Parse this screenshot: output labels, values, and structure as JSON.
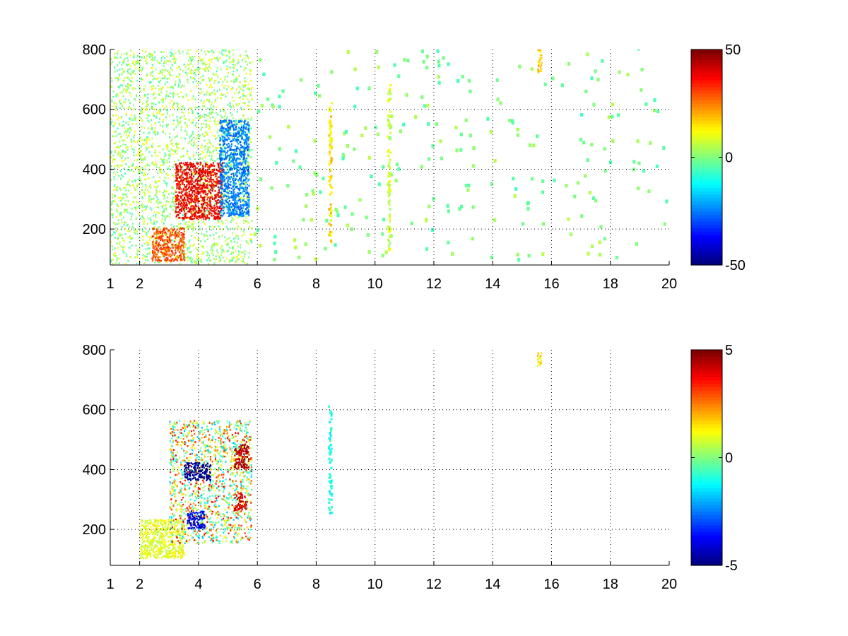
{
  "chart_data": [
    {
      "type": "heatmap",
      "title": "",
      "xlabel": "",
      "ylabel": "",
      "xlim": [
        1,
        20
      ],
      "ylim": [
        80,
        800
      ],
      "xticks": [
        1,
        2,
        4,
        6,
        8,
        10,
        12,
        14,
        16,
        18,
        20
      ],
      "yticks": [
        200,
        400,
        600,
        800
      ],
      "grid": true,
      "colormap": "jet",
      "colorbar": {
        "clim": [
          -50,
          50
        ],
        "ticks": [
          -50,
          0,
          50
        ]
      },
      "features": [
        {
          "desc": "dense low-frequency band",
          "x": [
            1,
            5.8
          ],
          "y": [
            80,
            800
          ],
          "value": 3,
          "noise": 10
        },
        {
          "desc": "positive ridge",
          "x": [
            2.4,
            3.5
          ],
          "y": [
            90,
            200
          ],
          "value": 30
        },
        {
          "desc": "positive core",
          "x": [
            3.2,
            4.8
          ],
          "y": [
            230,
            420
          ],
          "value": 38
        },
        {
          "desc": "negative core",
          "x": [
            4.7,
            5.7
          ],
          "y": [
            240,
            560
          ],
          "value": -25
        },
        {
          "desc": "sparse scattered cells",
          "x": [
            5.8,
            20
          ],
          "y": [
            80,
            800
          ],
          "value": 0,
          "noise": 6
        },
        {
          "desc": "vertical stripe",
          "x": [
            8.4,
            8.5
          ],
          "y": [
            150,
            650
          ],
          "value": 15
        },
        {
          "desc": "vertical stripe",
          "x": [
            10.4,
            10.5
          ],
          "y": [
            120,
            680
          ],
          "value": 8
        },
        {
          "desc": "cell",
          "x": [
            15.5,
            15.65
          ],
          "y": [
            720,
            800
          ],
          "value": 18
        }
      ]
    },
    {
      "type": "heatmap",
      "title": "",
      "xlabel": "",
      "ylabel": "",
      "xlim": [
        1,
        20
      ],
      "ylim": [
        80,
        800
      ],
      "xticks": [
        1,
        2,
        4,
        6,
        8,
        10,
        12,
        14,
        16,
        18,
        20
      ],
      "yticks": [
        200,
        400,
        600,
        800
      ],
      "grid": true,
      "colormap": "jet",
      "colorbar": {
        "clim": [
          -5,
          5
        ],
        "ticks": [
          -5,
          0,
          5
        ]
      },
      "features": [
        {
          "desc": "green ridge",
          "x": [
            2,
            3.5
          ],
          "y": [
            100,
            230
          ],
          "value": 1
        },
        {
          "desc": "scatter cluster",
          "x": [
            3,
            5.8
          ],
          "y": [
            150,
            560
          ],
          "value": 1,
          "noise": 3
        },
        {
          "desc": "negative patch",
          "x": [
            3.5,
            4.4
          ],
          "y": [
            360,
            420
          ],
          "value": -5
        },
        {
          "desc": "negative patch",
          "x": [
            3.6,
            4.2
          ],
          "y": [
            200,
            260
          ],
          "value": -4
        },
        {
          "desc": "positive patch",
          "x": [
            5.2,
            5.7
          ],
          "y": [
            400,
            480
          ],
          "value": 4.5
        },
        {
          "desc": "positive patch",
          "x": [
            5.2,
            5.6
          ],
          "y": [
            260,
            320
          ],
          "value": 4
        },
        {
          "desc": "thin stripe",
          "x": [
            8.4,
            8.5
          ],
          "y": [
            240,
            610
          ],
          "value": -1
        },
        {
          "desc": "cell",
          "x": [
            15.5,
            15.65
          ],
          "y": [
            740,
            790
          ],
          "value": 1.5
        }
      ]
    }
  ]
}
